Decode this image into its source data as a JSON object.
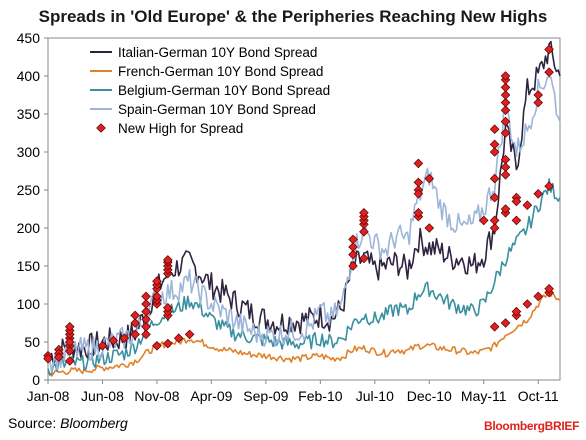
{
  "chart_data": {
    "type": "line",
    "title": "Spreads in 'Old Europe' & the Peripheries Reaching New Highs",
    "xlabel": "",
    "ylabel": "",
    "ylim": [
      0,
      450
    ],
    "yticks": [
      0,
      50,
      100,
      150,
      200,
      250,
      300,
      350,
      400,
      450
    ],
    "xlim": [
      "2008-01",
      "2011-12"
    ],
    "xticks": [
      "Jan-08",
      "Jun-08",
      "Nov-08",
      "Apr-09",
      "Sep-09",
      "Feb-10",
      "Jul-10",
      "Dec-10",
      "May-11",
      "Oct-11"
    ],
    "grid": false,
    "legend_position": "top-left",
    "series": [
      {
        "name": "Italian-German 10Y Bond Spread",
        "color": "#2e2440",
        "points": [
          [
            "2008-01",
            30
          ],
          [
            "2008-02",
            38
          ],
          [
            "2008-03",
            45
          ],
          [
            "2008-04",
            42
          ],
          [
            "2008-05",
            45
          ],
          [
            "2008-06",
            50
          ],
          [
            "2008-07",
            52
          ],
          [
            "2008-08",
            55
          ],
          [
            "2008-09",
            62
          ],
          [
            "2008-10",
            90
          ],
          [
            "2008-11",
            120
          ],
          [
            "2008-12",
            140
          ],
          [
            "2009-01",
            150
          ],
          [
            "2009-02",
            155
          ],
          [
            "2009-03",
            140
          ],
          [
            "2009-04",
            125
          ],
          [
            "2009-05",
            115
          ],
          [
            "2009-06",
            105
          ],
          [
            "2009-07",
            95
          ],
          [
            "2009-08",
            85
          ],
          [
            "2009-09",
            80
          ],
          [
            "2009-10",
            75
          ],
          [
            "2009-11",
            78
          ],
          [
            "2009-12",
            78
          ],
          [
            "2010-01",
            80
          ],
          [
            "2010-02",
            85
          ],
          [
            "2010-03",
            80
          ],
          [
            "2010-04",
            95
          ],
          [
            "2010-05",
            150
          ],
          [
            "2010-06",
            160
          ],
          [
            "2010-07",
            145
          ],
          [
            "2010-08",
            150
          ],
          [
            "2010-09",
            155
          ],
          [
            "2010-10",
            145
          ],
          [
            "2010-11",
            185
          ],
          [
            "2010-12",
            175
          ],
          [
            "2011-01",
            170
          ],
          [
            "2011-02",
            160
          ],
          [
            "2011-03",
            160
          ],
          [
            "2011-04",
            150
          ],
          [
            "2011-05",
            165
          ],
          [
            "2011-06",
            200
          ],
          [
            "2011-07",
            330
          ],
          [
            "2011-08",
            280
          ],
          [
            "2011-09",
            380
          ],
          [
            "2011-10",
            400
          ],
          [
            "2011-11",
            435
          ],
          [
            "2011-12",
            400
          ]
        ]
      },
      {
        "name": "French-German 10Y Bond Spread",
        "color": "#e0822a",
        "points": [
          [
            "2008-01",
            8
          ],
          [
            "2008-02",
            10
          ],
          [
            "2008-03",
            12
          ],
          [
            "2008-04",
            12
          ],
          [
            "2008-05",
            14
          ],
          [
            "2008-06",
            16
          ],
          [
            "2008-07",
            18
          ],
          [
            "2008-08",
            20
          ],
          [
            "2008-09",
            25
          ],
          [
            "2008-10",
            35
          ],
          [
            "2008-11",
            45
          ],
          [
            "2008-12",
            48
          ],
          [
            "2009-01",
            50
          ],
          [
            "2009-02",
            55
          ],
          [
            "2009-03",
            50
          ],
          [
            "2009-04",
            45
          ],
          [
            "2009-05",
            40
          ],
          [
            "2009-06",
            38
          ],
          [
            "2009-07",
            35
          ],
          [
            "2009-08",
            33
          ],
          [
            "2009-09",
            32
          ],
          [
            "2009-10",
            30
          ],
          [
            "2009-11",
            28
          ],
          [
            "2009-12",
            28
          ],
          [
            "2010-01",
            30
          ],
          [
            "2010-02",
            32
          ],
          [
            "2010-03",
            28
          ],
          [
            "2010-04",
            30
          ],
          [
            "2010-05",
            40
          ],
          [
            "2010-06",
            42
          ],
          [
            "2010-07",
            38
          ],
          [
            "2010-08",
            35
          ],
          [
            "2010-09",
            40
          ],
          [
            "2010-10",
            38
          ],
          [
            "2010-11",
            45
          ],
          [
            "2010-12",
            45
          ],
          [
            "2011-01",
            42
          ],
          [
            "2011-02",
            40
          ],
          [
            "2011-03",
            38
          ],
          [
            "2011-04",
            35
          ],
          [
            "2011-05",
            38
          ],
          [
            "2011-06",
            45
          ],
          [
            "2011-07",
            60
          ],
          [
            "2011-08",
            70
          ],
          [
            "2011-09",
            80
          ],
          [
            "2011-10",
            100
          ],
          [
            "2011-11",
            115
          ],
          [
            "2011-12",
            105
          ]
        ]
      },
      {
        "name": "Belgium-German 10Y Bond Spread",
        "color": "#3a8fa0",
        "points": [
          [
            "2008-01",
            15
          ],
          [
            "2008-02",
            18
          ],
          [
            "2008-03",
            22
          ],
          [
            "2008-04",
            22
          ],
          [
            "2008-05",
            25
          ],
          [
            "2008-06",
            28
          ],
          [
            "2008-07",
            32
          ],
          [
            "2008-08",
            35
          ],
          [
            "2008-09",
            45
          ],
          [
            "2008-10",
            65
          ],
          [
            "2008-11",
            80
          ],
          [
            "2008-12",
            88
          ],
          [
            "2009-01",
            95
          ],
          [
            "2009-02",
            105
          ],
          [
            "2009-03",
            95
          ],
          [
            "2009-04",
            80
          ],
          [
            "2009-05",
            70
          ],
          [
            "2009-06",
            62
          ],
          [
            "2009-07",
            58
          ],
          [
            "2009-08",
            55
          ],
          [
            "2009-09",
            52
          ],
          [
            "2009-10",
            50
          ],
          [
            "2009-11",
            48
          ],
          [
            "2009-12",
            48
          ],
          [
            "2010-01",
            50
          ],
          [
            "2010-02",
            55
          ],
          [
            "2010-03",
            50
          ],
          [
            "2010-04",
            55
          ],
          [
            "2010-05",
            75
          ],
          [
            "2010-06",
            85
          ],
          [
            "2010-07",
            80
          ],
          [
            "2010-08",
            85
          ],
          [
            "2010-09",
            95
          ],
          [
            "2010-10",
            90
          ],
          [
            "2010-11",
            115
          ],
          [
            "2010-12",
            120
          ],
          [
            "2011-01",
            110
          ],
          [
            "2011-02",
            100
          ],
          [
            "2011-03",
            95
          ],
          [
            "2011-04",
            90
          ],
          [
            "2011-05",
            100
          ],
          [
            "2011-06",
            130
          ],
          [
            "2011-07",
            160
          ],
          [
            "2011-08",
            180
          ],
          [
            "2011-09",
            200
          ],
          [
            "2011-10",
            230
          ],
          [
            "2011-11",
            255
          ],
          [
            "2011-12",
            240
          ]
        ]
      },
      {
        "name": "Spain-German 10Y Bond Spread",
        "color": "#9db5d8",
        "points": [
          [
            "2008-01",
            25
          ],
          [
            "2008-02",
            30
          ],
          [
            "2008-03",
            38
          ],
          [
            "2008-04",
            40
          ],
          [
            "2008-05",
            42
          ],
          [
            "2008-06",
            45
          ],
          [
            "2008-07",
            50
          ],
          [
            "2008-08",
            55
          ],
          [
            "2008-09",
            60
          ],
          [
            "2008-10",
            85
          ],
          [
            "2008-11",
            110
          ],
          [
            "2008-12",
            115
          ],
          [
            "2009-01",
            120
          ],
          [
            "2009-02",
            130
          ],
          [
            "2009-03",
            115
          ],
          [
            "2009-04",
            100
          ],
          [
            "2009-05",
            90
          ],
          [
            "2009-06",
            80
          ],
          [
            "2009-07",
            70
          ],
          [
            "2009-08",
            62
          ],
          [
            "2009-09",
            60
          ],
          [
            "2009-10",
            58
          ],
          [
            "2009-11",
            65
          ],
          [
            "2009-12",
            65
          ],
          [
            "2010-01",
            70
          ],
          [
            "2010-02",
            90
          ],
          [
            "2010-03",
            80
          ],
          [
            "2010-04",
            100
          ],
          [
            "2010-05",
            170
          ],
          [
            "2010-06",
            200
          ],
          [
            "2010-07",
            180
          ],
          [
            "2010-08",
            170
          ],
          [
            "2010-09",
            190
          ],
          [
            "2010-10",
            185
          ],
          [
            "2010-11",
            240
          ],
          [
            "2010-12",
            270
          ],
          [
            "2011-01",
            230
          ],
          [
            "2011-02",
            210
          ],
          [
            "2011-03",
            200
          ],
          [
            "2011-04",
            205
          ],
          [
            "2011-05",
            225
          ],
          [
            "2011-06",
            260
          ],
          [
            "2011-07",
            360
          ],
          [
            "2011-08",
            300
          ],
          [
            "2011-09",
            330
          ],
          [
            "2011-10",
            380
          ],
          [
            "2011-11",
            405
          ],
          [
            "2011-12",
            340
          ]
        ]
      }
    ],
    "markers": {
      "name": "New High for Spread",
      "color": "#e02020",
      "points": [
        [
          "2008-01",
          32
        ],
        [
          "2008-01",
          28
        ],
        [
          "2008-02",
          40
        ],
        [
          "2008-02",
          35
        ],
        [
          "2008-02",
          30
        ],
        [
          "2008-03",
          45
        ],
        [
          "2008-03",
          55
        ],
        [
          "2008-03",
          60
        ],
        [
          "2008-03",
          65
        ],
        [
          "2008-03",
          70
        ],
        [
          "2008-03",
          50
        ],
        [
          "2008-03",
          38
        ],
        [
          "2008-03",
          25
        ],
        [
          "2008-06",
          45
        ],
        [
          "2008-07",
          52
        ],
        [
          "2008-08",
          55
        ],
        [
          "2008-09",
          60
        ],
        [
          "2008-09",
          75
        ],
        [
          "2008-09",
          85
        ],
        [
          "2008-10",
          90
        ],
        [
          "2008-10",
          100
        ],
        [
          "2008-10",
          110
        ],
        [
          "2008-10",
          70
        ],
        [
          "2008-10",
          80
        ],
        [
          "2008-10",
          60
        ],
        [
          "2008-11",
          120
        ],
        [
          "2008-11",
          125
        ],
        [
          "2008-11",
          130
        ],
        [
          "2008-11",
          100
        ],
        [
          "2008-11",
          105
        ],
        [
          "2008-11",
          110
        ],
        [
          "2008-12",
          140
        ],
        [
          "2008-12",
          145
        ],
        [
          "2008-12",
          150
        ],
        [
          "2008-12",
          155
        ],
        [
          "2008-12",
          158
        ],
        [
          "2008-12",
          85
        ],
        [
          "2008-12",
          90
        ],
        [
          "2008-12",
          95
        ],
        [
          "2008-11",
          45
        ],
        [
          "2008-12",
          48
        ],
        [
          "2009-01",
          55
        ],
        [
          "2009-02",
          60
        ],
        [
          "2010-05",
          150
        ],
        [
          "2010-05",
          165
        ],
        [
          "2010-05",
          175
        ],
        [
          "2010-05",
          185
        ],
        [
          "2010-06",
          195
        ],
        [
          "2010-06",
          205
        ],
        [
          "2010-06",
          210
        ],
        [
          "2010-06",
          215
        ],
        [
          "2010-06",
          220
        ],
        [
          "2010-06",
          160
        ],
        [
          "2010-11",
          250
        ],
        [
          "2010-11",
          260
        ],
        [
          "2010-11",
          285
        ],
        [
          "2010-11",
          245
        ],
        [
          "2010-11",
          215
        ],
        [
          "2010-11",
          220
        ],
        [
          "2010-12",
          265
        ],
        [
          "2010-12",
          200
        ],
        [
          "2011-05",
          210
        ],
        [
          "2011-06",
          240
        ],
        [
          "2011-06",
          265
        ],
        [
          "2011-06",
          300
        ],
        [
          "2011-06",
          310
        ],
        [
          "2011-06",
          330
        ],
        [
          "2011-07",
          340
        ],
        [
          "2011-07",
          355
        ],
        [
          "2011-07",
          365
        ],
        [
          "2011-07",
          375
        ],
        [
          "2011-07",
          385
        ],
        [
          "2011-07",
          395
        ],
        [
          "2011-07",
          400
        ],
        [
          "2011-07",
          325
        ],
        [
          "2011-07",
          290
        ],
        [
          "2011-07",
          280
        ],
        [
          "2011-07",
          270
        ],
        [
          "2011-07",
          220
        ],
        [
          "2011-07",
          225
        ],
        [
          "2011-08",
          240
        ],
        [
          "2011-08",
          235
        ],
        [
          "2011-06",
          200
        ],
        [
          "2011-06",
          210
        ],
        [
          "2011-08",
          210
        ],
        [
          "2011-09",
          230
        ],
        [
          "2011-10",
          245
        ],
        [
          "2011-11",
          255
        ],
        [
          "2011-06",
          70
        ],
        [
          "2011-07",
          75
        ],
        [
          "2011-08",
          85
        ],
        [
          "2011-08",
          90
        ],
        [
          "2011-09",
          100
        ],
        [
          "2011-10",
          110
        ],
        [
          "2011-11",
          115
        ],
        [
          "2011-11",
          120
        ],
        [
          "2011-10",
          365
        ],
        [
          "2011-10",
          375
        ],
        [
          "2011-11",
          405
        ],
        [
          "2011-11",
          435
        ]
      ]
    }
  },
  "footer": {
    "source_label": "Source: ",
    "source_name": "Bloomberg",
    "brand": "BloombergBRIEF"
  }
}
